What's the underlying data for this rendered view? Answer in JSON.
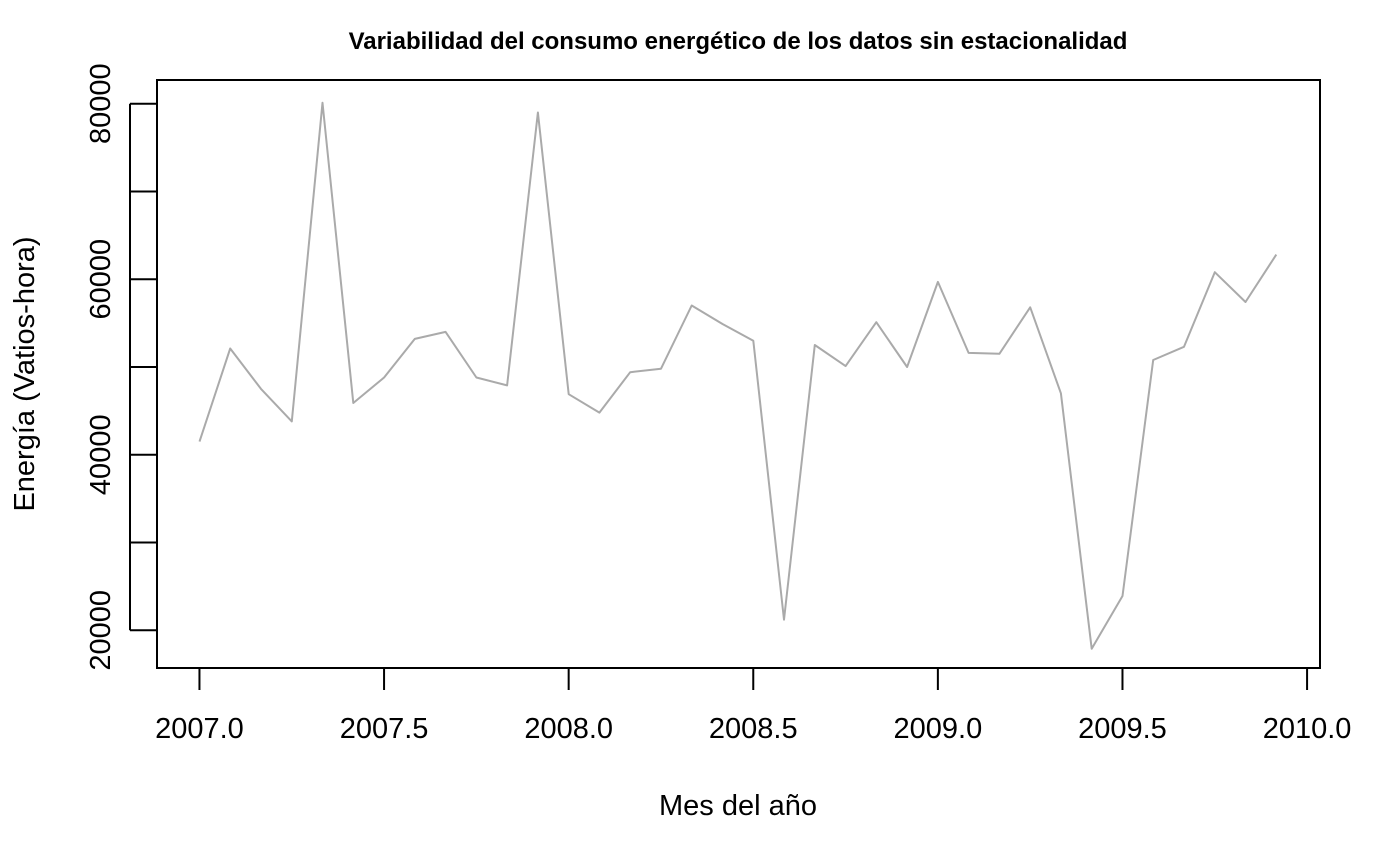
{
  "chart_data": {
    "type": "line",
    "title": "Variabilidad del consumo energético de los datos sin estacionalidad",
    "xlabel": "Mes del año",
    "ylabel": "Energía (Vatios-hora)",
    "xlim": [
      2006.885,
      2010.035
    ],
    "ylim": [
      15700,
      82700
    ],
    "x_ticks": [
      2007.0,
      2007.5,
      2008.0,
      2008.5,
      2009.0,
      2009.5,
      2010.0
    ],
    "x_tick_labels": [
      "2007.0",
      "2007.5",
      "2008.0",
      "2008.5",
      "2009.0",
      "2009.5",
      "2010.0"
    ],
    "y_ticks": [
      20000,
      30000,
      40000,
      50000,
      60000,
      70000,
      80000
    ],
    "y_tick_labels": [
      "20000",
      "",
      "40000",
      "",
      "60000",
      "",
      "80000"
    ],
    "grid": false,
    "series": [
      {
        "color": "#aaaaaa",
        "x": [
          2007.0,
          2007.0833,
          2007.1667,
          2007.25,
          2007.3333,
          2007.4167,
          2007.5,
          2007.5833,
          2007.6667,
          2007.75,
          2007.8333,
          2007.9167,
          2008.0,
          2008.0833,
          2008.1667,
          2008.25,
          2008.3333,
          2008.4167,
          2008.5,
          2008.5833,
          2008.6667,
          2008.75,
          2008.8333,
          2008.9167,
          2009.0,
          2009.0833,
          2009.1667,
          2009.25,
          2009.3333,
          2009.4167,
          2009.5,
          2009.5833,
          2009.6667,
          2009.75,
          2009.8333,
          2009.9167
        ],
        "values": [
          41500,
          52100,
          47500,
          43800,
          80100,
          45900,
          48800,
          53200,
          54000,
          48800,
          47900,
          79000,
          46900,
          44800,
          49400,
          49800,
          57000,
          54900,
          53000,
          21200,
          52500,
          50100,
          55100,
          50000,
          59700,
          51600,
          51500,
          56800,
          47000,
          17900,
          23900,
          50800,
          52300,
          60800,
          57400,
          62800
        ]
      }
    ]
  }
}
